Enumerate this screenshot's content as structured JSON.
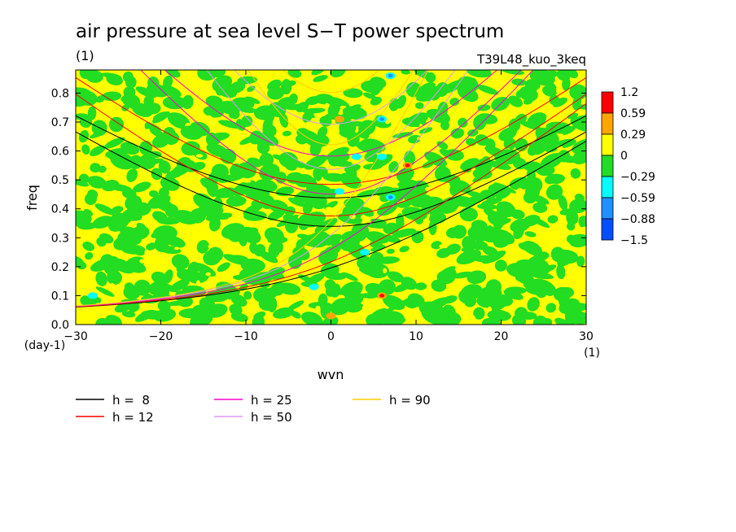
{
  "chart_data": {
    "type": "heatmap",
    "title": "air pressure at sea level S−T power spectrum",
    "units_label": "(1)",
    "experiment_label": "T39L48_kuo_3keq",
    "xlabel": "wvn",
    "ylabel": "freq",
    "x_unit_label": "(1)",
    "y_unit_label": "(day-1)",
    "xlim": [
      -30,
      30
    ],
    "ylim": [
      0.0,
      0.88
    ],
    "x_ticks": [
      -30,
      -20,
      -10,
      0,
      10,
      20,
      30
    ],
    "x_tick_labels": [
      "−30",
      "−20",
      "−10",
      "0",
      "10",
      "20",
      "30"
    ],
    "y_ticks": [
      0.0,
      0.1,
      0.2,
      0.3,
      0.4,
      0.5,
      0.6,
      0.7,
      0.8
    ],
    "y_tick_labels": [
      "0.0",
      "0.1",
      "0.2",
      "0.3",
      "0.4",
      "0.5",
      "0.6",
      "0.7",
      "0.8"
    ],
    "colorbar": {
      "colors": [
        "#ff0000",
        "#ffa500",
        "#ffff00",
        "#22dd22",
        "#00ffff",
        "#1e90ff",
        "#0050ff"
      ],
      "labels": [
        "1.2",
        "0.59",
        "0.29",
        "0",
        "−0.29",
        "−0.59",
        "−0.88",
        "−1.5"
      ],
      "level_values": [
        1.2,
        0.59,
        0.29,
        0,
        -0.29,
        -0.59,
        -0.88,
        -1.5
      ]
    },
    "field_note": "noisy anomaly field dominated by yellow (0 to 0.29) and green (-0.29 to 0) patches",
    "hot_spots": [
      {
        "wvn": 6,
        "freq": 0.1,
        "level": "1.2"
      },
      {
        "wvn": 1,
        "freq": 0.71,
        "level": "0.59"
      },
      {
        "wvn": 9,
        "freq": 0.55,
        "level": "1.2"
      },
      {
        "wvn": 0,
        "freq": 0.03,
        "level": "0.59"
      }
    ],
    "cold_spots": [
      {
        "wvn": 7,
        "freq": 0.44,
        "level": "-0.59"
      },
      {
        "wvn": 6,
        "freq": 0.71,
        "level": "-0.59"
      },
      {
        "wvn": 6,
        "freq": 0.58,
        "level": "-0.29"
      },
      {
        "wvn": 4,
        "freq": 0.25,
        "level": "-0.29"
      },
      {
        "wvn": 7,
        "freq": 0.86,
        "level": "-0.59"
      },
      {
        "wvn": 1,
        "freq": 0.46,
        "level": "-0.29"
      },
      {
        "wvn": 3,
        "freq": 0.58,
        "level": "-0.29"
      },
      {
        "wvn": -28,
        "freq": 0.1,
        "level": "-0.29"
      },
      {
        "wvn": -2,
        "freq": 0.13,
        "level": "-0.29"
      }
    ],
    "dispersion_curves": [
      {
        "name": "h =  8",
        "h": 8,
        "color": "#000000"
      },
      {
        "name": "h = 12",
        "h": 12,
        "color": "#ff0000"
      },
      {
        "name": "h = 25",
        "h": 25,
        "color": "#ff00cc"
      },
      {
        "name": "h = 50",
        "h": 50,
        "color": "#dd99ee"
      },
      {
        "name": "h = 90",
        "h": 90,
        "color": "#ffcc00"
      }
    ],
    "legend_position": "bottom-left"
  }
}
